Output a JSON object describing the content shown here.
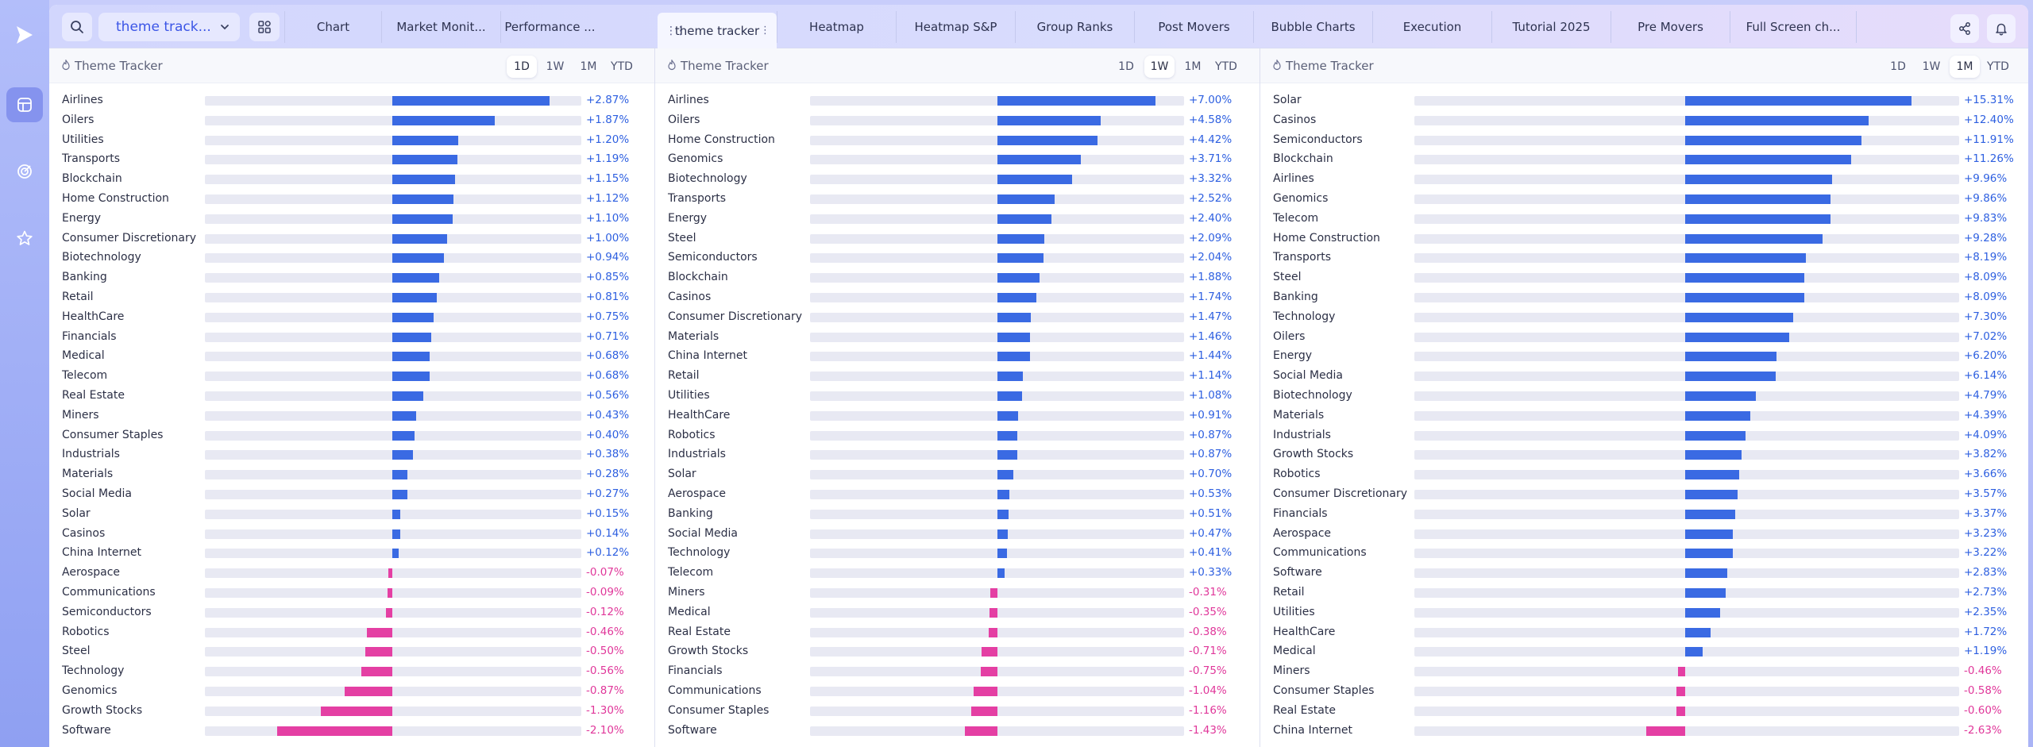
{
  "colors": {
    "positive": "#3a6ae3",
    "negative": "#e43fa3",
    "accent": "#3b55e6"
  },
  "sidebar": {
    "logo_icon": "play-logo-icon",
    "items": [
      {
        "icon": "layout-icon",
        "active": true
      },
      {
        "icon": "target-icon",
        "active": false
      },
      {
        "icon": "star-icon",
        "active": false
      }
    ]
  },
  "topbar": {
    "search_icon": "search-icon",
    "workspace_label": "theme track...",
    "widgets_icon": "widgets-icon",
    "tabs": [
      {
        "label": "Chart",
        "active": false
      },
      {
        "label": "Market Monit...",
        "active": false
      },
      {
        "label": "Performance ...",
        "active": false
      },
      {
        "label": "theme tracker",
        "active": true
      },
      {
        "label": "Heatmap",
        "active": false
      },
      {
        "label": "Heatmap S&P",
        "active": false
      },
      {
        "label": "Group Ranks",
        "active": false
      },
      {
        "label": "Post Movers",
        "active": false
      },
      {
        "label": "Bubble Charts",
        "active": false
      },
      {
        "label": "Execution",
        "active": false
      },
      {
        "label": "Tutorial 2025",
        "active": false
      },
      {
        "label": "Pre Movers",
        "active": false
      },
      {
        "label": "Full Screen ch...",
        "active": false
      }
    ],
    "share_icon": "share-icon",
    "bell_icon": "bell-icon"
  },
  "panels": [
    {
      "title": "Theme Tracker",
      "periods": [
        "1D",
        "1W",
        "1M",
        "YTD"
      ],
      "active_period": "1D",
      "rows": [
        {
          "name": "Airlines",
          "value": 2.87,
          "label": "+2.87%"
        },
        {
          "name": "Oilers",
          "value": 1.87,
          "label": "+1.87%"
        },
        {
          "name": "Utilities",
          "value": 1.2,
          "label": "+1.20%"
        },
        {
          "name": "Transports",
          "value": 1.19,
          "label": "+1.19%"
        },
        {
          "name": "Blockchain",
          "value": 1.15,
          "label": "+1.15%"
        },
        {
          "name": "Home Construction",
          "value": 1.12,
          "label": "+1.12%"
        },
        {
          "name": "Energy",
          "value": 1.1,
          "label": "+1.10%"
        },
        {
          "name": "Consumer Discretionary",
          "value": 1.0,
          "label": "+1.00%"
        },
        {
          "name": "Biotechnology",
          "value": 0.94,
          "label": "+0.94%"
        },
        {
          "name": "Banking",
          "value": 0.85,
          "label": "+0.85%"
        },
        {
          "name": "Retail",
          "value": 0.81,
          "label": "+0.81%"
        },
        {
          "name": "HealthCare",
          "value": 0.75,
          "label": "+0.75%"
        },
        {
          "name": "Financials",
          "value": 0.71,
          "label": "+0.71%"
        },
        {
          "name": "Medical",
          "value": 0.68,
          "label": "+0.68%"
        },
        {
          "name": "Telecom",
          "value": 0.68,
          "label": "+0.68%"
        },
        {
          "name": "Real Estate",
          "value": 0.56,
          "label": "+0.56%"
        },
        {
          "name": "Miners",
          "value": 0.43,
          "label": "+0.43%"
        },
        {
          "name": "Consumer Staples",
          "value": 0.4,
          "label": "+0.40%"
        },
        {
          "name": "Industrials",
          "value": 0.38,
          "label": "+0.38%"
        },
        {
          "name": "Materials",
          "value": 0.28,
          "label": "+0.28%"
        },
        {
          "name": "Social Media",
          "value": 0.27,
          "label": "+0.27%"
        },
        {
          "name": "Solar",
          "value": 0.15,
          "label": "+0.15%"
        },
        {
          "name": "Casinos",
          "value": 0.14,
          "label": "+0.14%"
        },
        {
          "name": "China Internet",
          "value": 0.12,
          "label": "+0.12%"
        },
        {
          "name": "Aerospace",
          "value": -0.07,
          "label": "-0.07%"
        },
        {
          "name": "Communications",
          "value": -0.09,
          "label": "-0.09%"
        },
        {
          "name": "Semiconductors",
          "value": -0.12,
          "label": "-0.12%"
        },
        {
          "name": "Robotics",
          "value": -0.46,
          "label": "-0.46%"
        },
        {
          "name": "Steel",
          "value": -0.5,
          "label": "-0.50%"
        },
        {
          "name": "Technology",
          "value": -0.56,
          "label": "-0.56%"
        },
        {
          "name": "Genomics",
          "value": -0.87,
          "label": "-0.87%"
        },
        {
          "name": "Growth Stocks",
          "value": -1.3,
          "label": "-1.30%"
        },
        {
          "name": "Software",
          "value": -2.1,
          "label": "-2.10%"
        }
      ]
    },
    {
      "title": "Theme Tracker",
      "periods": [
        "1D",
        "1W",
        "1M",
        "YTD"
      ],
      "active_period": "1W",
      "rows": [
        {
          "name": "Airlines",
          "value": 7.0,
          "label": "+7.00%"
        },
        {
          "name": "Oilers",
          "value": 4.58,
          "label": "+4.58%"
        },
        {
          "name": "Home Construction",
          "value": 4.42,
          "label": "+4.42%"
        },
        {
          "name": "Genomics",
          "value": 3.71,
          "label": "+3.71%"
        },
        {
          "name": "Biotechnology",
          "value": 3.32,
          "label": "+3.32%"
        },
        {
          "name": "Transports",
          "value": 2.52,
          "label": "+2.52%"
        },
        {
          "name": "Energy",
          "value": 2.4,
          "label": "+2.40%"
        },
        {
          "name": "Steel",
          "value": 2.09,
          "label": "+2.09%"
        },
        {
          "name": "Semiconductors",
          "value": 2.04,
          "label": "+2.04%"
        },
        {
          "name": "Blockchain",
          "value": 1.88,
          "label": "+1.88%"
        },
        {
          "name": "Casinos",
          "value": 1.74,
          "label": "+1.74%"
        },
        {
          "name": "Consumer Discretionary",
          "value": 1.47,
          "label": "+1.47%"
        },
        {
          "name": "Materials",
          "value": 1.46,
          "label": "+1.46%"
        },
        {
          "name": "China Internet",
          "value": 1.44,
          "label": "+1.44%"
        },
        {
          "name": "Retail",
          "value": 1.14,
          "label": "+1.14%"
        },
        {
          "name": "Utilities",
          "value": 1.08,
          "label": "+1.08%"
        },
        {
          "name": "HealthCare",
          "value": 0.91,
          "label": "+0.91%"
        },
        {
          "name": "Robotics",
          "value": 0.87,
          "label": "+0.87%"
        },
        {
          "name": "Industrials",
          "value": 0.87,
          "label": "+0.87%"
        },
        {
          "name": "Solar",
          "value": 0.7,
          "label": "+0.70%"
        },
        {
          "name": "Aerospace",
          "value": 0.53,
          "label": "+0.53%"
        },
        {
          "name": "Banking",
          "value": 0.51,
          "label": "+0.51%"
        },
        {
          "name": "Social Media",
          "value": 0.47,
          "label": "+0.47%"
        },
        {
          "name": "Technology",
          "value": 0.41,
          "label": "+0.41%"
        },
        {
          "name": "Telecom",
          "value": 0.33,
          "label": "+0.33%"
        },
        {
          "name": "Miners",
          "value": -0.31,
          "label": "-0.31%"
        },
        {
          "name": "Medical",
          "value": -0.35,
          "label": "-0.35%"
        },
        {
          "name": "Real Estate",
          "value": -0.38,
          "label": "-0.38%"
        },
        {
          "name": "Growth Stocks",
          "value": -0.71,
          "label": "-0.71%"
        },
        {
          "name": "Financials",
          "value": -0.75,
          "label": "-0.75%"
        },
        {
          "name": "Communications",
          "value": -1.04,
          "label": "-1.04%"
        },
        {
          "name": "Consumer Staples",
          "value": -1.16,
          "label": "-1.16%"
        },
        {
          "name": "Software",
          "value": -1.43,
          "label": "-1.43%"
        }
      ]
    },
    {
      "title": "Theme Tracker",
      "periods": [
        "1D",
        "1W",
        "1M",
        "YTD"
      ],
      "active_period": "1M",
      "rows": [
        {
          "name": "Solar",
          "value": 15.31,
          "label": "+15.31%"
        },
        {
          "name": "Casinos",
          "value": 12.4,
          "label": "+12.40%"
        },
        {
          "name": "Semiconductors",
          "value": 11.91,
          "label": "+11.91%"
        },
        {
          "name": "Blockchain",
          "value": 11.26,
          "label": "+11.26%"
        },
        {
          "name": "Airlines",
          "value": 9.96,
          "label": "+9.96%"
        },
        {
          "name": "Genomics",
          "value": 9.86,
          "label": "+9.86%"
        },
        {
          "name": "Telecom",
          "value": 9.83,
          "label": "+9.83%"
        },
        {
          "name": "Home Construction",
          "value": 9.28,
          "label": "+9.28%"
        },
        {
          "name": "Transports",
          "value": 8.19,
          "label": "+8.19%"
        },
        {
          "name": "Steel",
          "value": 8.09,
          "label": "+8.09%"
        },
        {
          "name": "Banking",
          "value": 8.09,
          "label": "+8.09%"
        },
        {
          "name": "Technology",
          "value": 7.3,
          "label": "+7.30%"
        },
        {
          "name": "Oilers",
          "value": 7.02,
          "label": "+7.02%"
        },
        {
          "name": "Energy",
          "value": 6.2,
          "label": "+6.20%"
        },
        {
          "name": "Social Media",
          "value": 6.14,
          "label": "+6.14%"
        },
        {
          "name": "Biotechnology",
          "value": 4.79,
          "label": "+4.79%"
        },
        {
          "name": "Materials",
          "value": 4.39,
          "label": "+4.39%"
        },
        {
          "name": "Industrials",
          "value": 4.09,
          "label": "+4.09%"
        },
        {
          "name": "Growth Stocks",
          "value": 3.82,
          "label": "+3.82%"
        },
        {
          "name": "Robotics",
          "value": 3.66,
          "label": "+3.66%"
        },
        {
          "name": "Consumer Discretionary",
          "value": 3.57,
          "label": "+3.57%"
        },
        {
          "name": "Financials",
          "value": 3.37,
          "label": "+3.37%"
        },
        {
          "name": "Aerospace",
          "value": 3.23,
          "label": "+3.23%"
        },
        {
          "name": "Communications",
          "value": 3.22,
          "label": "+3.22%"
        },
        {
          "name": "Software",
          "value": 2.83,
          "label": "+2.83%"
        },
        {
          "name": "Retail",
          "value": 2.73,
          "label": "+2.73%"
        },
        {
          "name": "Utilities",
          "value": 2.35,
          "label": "+2.35%"
        },
        {
          "name": "HealthCare",
          "value": 1.72,
          "label": "+1.72%"
        },
        {
          "name": "Medical",
          "value": 1.19,
          "label": "+1.19%"
        },
        {
          "name": "Miners",
          "value": -0.46,
          "label": "-0.46%"
        },
        {
          "name": "Consumer Staples",
          "value": -0.58,
          "label": "-0.58%"
        },
        {
          "name": "Real Estate",
          "value": -0.6,
          "label": "-0.60%"
        },
        {
          "name": "China Internet",
          "value": -2.63,
          "label": "-2.63%"
        }
      ]
    }
  ]
}
